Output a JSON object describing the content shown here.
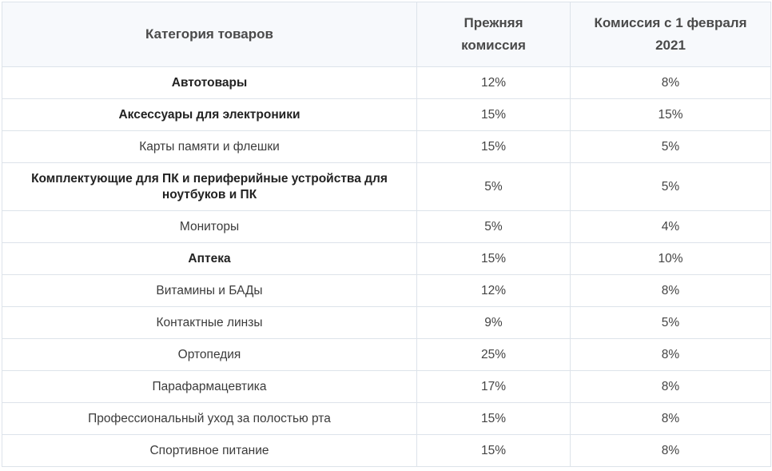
{
  "table": {
    "headers": {
      "category": "Категория товаров",
      "old": "Прежняя комиссия",
      "new": "Комиссия с 1 февраля 2021"
    },
    "rows": [
      {
        "category": "Автотовары",
        "old": "12%",
        "new": "8%",
        "bold": true
      },
      {
        "category": "Аксессуары для электроники",
        "old": "15%",
        "new": "15%",
        "bold": true
      },
      {
        "category": "Карты памяти и флешки",
        "old": "15%",
        "new": "5%",
        "bold": false
      },
      {
        "category": "Комплектующие для ПК и периферийные устройства для ноутбуков и ПК",
        "old": "5%",
        "new": "5%",
        "bold": true
      },
      {
        "category": "Мониторы",
        "old": "5%",
        "new": "4%",
        "bold": false
      },
      {
        "category": "Аптека",
        "old": "15%",
        "new": "10%",
        "bold": true
      },
      {
        "category": "Витамины и БАДы",
        "old": "12%",
        "new": "8%",
        "bold": false
      },
      {
        "category": "Контактные линзы",
        "old": "9%",
        "new": "5%",
        "bold": false
      },
      {
        "category": "Ортопедия",
        "old": "25%",
        "new": "8%",
        "bold": false
      },
      {
        "category": "Парафармацевтика",
        "old": "17%",
        "new": "8%",
        "bold": false
      },
      {
        "category": "Профессиональный уход за полостью рта",
        "old": "15%",
        "new": "8%",
        "bold": false
      },
      {
        "category": "Спортивное питание",
        "old": "15%",
        "new": "8%",
        "bold": false
      }
    ]
  }
}
